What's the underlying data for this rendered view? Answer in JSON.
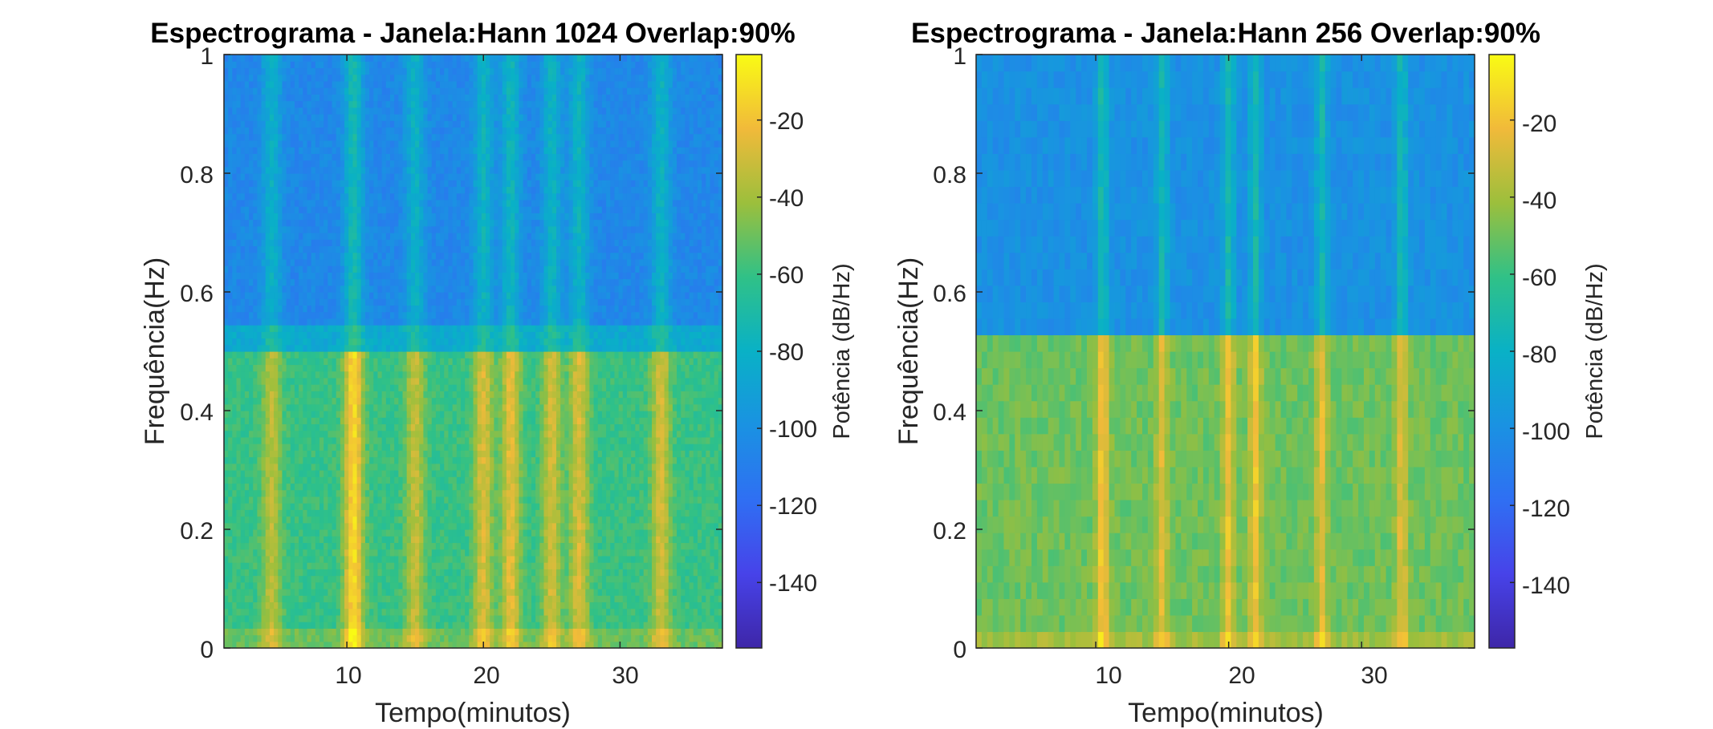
{
  "chart_data": [
    {
      "type": "heatmap",
      "title": "Espectrograma - Janela:Hann 1024 Overlap:90%",
      "xlabel": "Tempo(minutos)",
      "ylabel": "Frequência(Hz)",
      "xlim": [
        1,
        37.5
      ],
      "ylim": [
        0,
        1
      ],
      "xticks": [
        "10",
        "20",
        "30"
      ],
      "yticks": [
        "0",
        "0.2",
        "0.4",
        "0.6",
        "0.8",
        "1"
      ],
      "colorbar": {
        "label": "Potência (dB/Hz)",
        "range": [
          -157,
          -3
        ],
        "ticks": [
          "-20",
          "-40",
          "-60",
          "-80",
          "-100",
          "-120",
          "-140"
        ]
      },
      "colormap": "parula",
      "bands_hz": [
        {
          "range": [
            0.55,
            1.0
          ],
          "level_db": -105,
          "note": "blue upper band"
        },
        {
          "range": [
            0.5,
            0.55
          ],
          "level_db": -85,
          "note": "transition"
        },
        {
          "range": [
            0.0,
            0.5
          ],
          "level_db": -60,
          "note": "green/yellow lower band"
        }
      ],
      "peaks": [
        {
          "time_min": 4.5,
          "level_db": -35
        },
        {
          "time_min": 10.5,
          "level_db": -12
        },
        {
          "time_min": 15,
          "level_db": -33
        },
        {
          "time_min": 20,
          "level_db": -28
        },
        {
          "time_min": 22,
          "level_db": -25
        },
        {
          "time_min": 25,
          "level_db": -30
        },
        {
          "time_min": 27,
          "level_db": -28
        },
        {
          "time_min": 33,
          "level_db": -30
        }
      ]
    },
    {
      "type": "heatmap",
      "title": "Espectrograma - Janela:Hann 256 Overlap:90%",
      "xlabel": "Tempo(minutos)",
      "ylabel": "Frequência(Hz)",
      "xlim": [
        1,
        38.5
      ],
      "ylim": [
        0,
        1
      ],
      "xticks": [
        "10",
        "20",
        "30"
      ],
      "yticks": [
        "0",
        "0.2",
        "0.4",
        "0.6",
        "0.8",
        "1"
      ],
      "colorbar": {
        "label": "Potência (dB/Hz)",
        "range": [
          -157,
          -3
        ],
        "ticks": [
          "-20",
          "-40",
          "-60",
          "-80",
          "-100",
          "-120",
          "-140"
        ]
      },
      "colormap": "parula",
      "bands_hz": [
        {
          "range": [
            0.52,
            1.0
          ],
          "level_db": -100,
          "note": "blue upper band"
        },
        {
          "range": [
            0.0,
            0.52
          ],
          "level_db": -50,
          "note": "green/yellow lower band"
        }
      ],
      "peaks": [
        {
          "time_min": 10.5,
          "level_db": -18
        },
        {
          "time_min": 15,
          "level_db": -25
        },
        {
          "time_min": 20,
          "level_db": -22
        },
        {
          "time_min": 22,
          "level_db": -20
        },
        {
          "time_min": 27,
          "level_db": -25
        },
        {
          "time_min": 33,
          "level_db": -25
        }
      ]
    }
  ]
}
